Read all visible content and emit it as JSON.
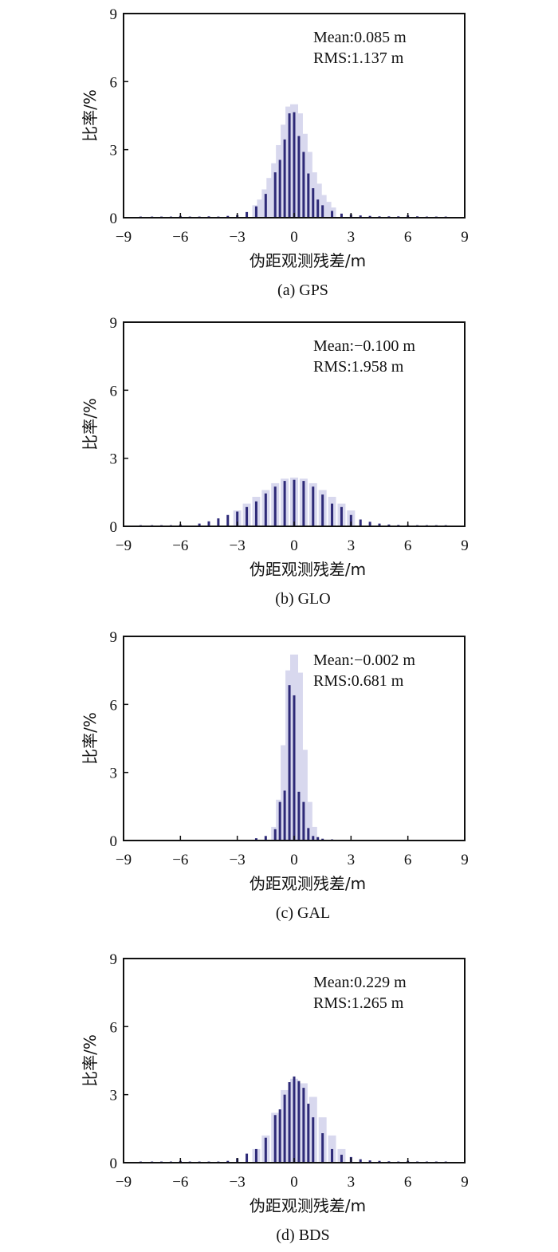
{
  "chart_data": [
    {
      "type": "bar",
      "caption": "(a) GPS",
      "xlabel": "伪距观测残差/m",
      "ylabel": "比率/%",
      "xlim": [
        -9,
        9
      ],
      "ylim": [
        0,
        9
      ],
      "xticks": [
        "−9",
        "−6",
        "−3",
        "0",
        "3",
        "6",
        "9"
      ],
      "yticks": [
        "0",
        "3",
        "6",
        "9"
      ],
      "stats": {
        "mean": "Mean:0.085 m",
        "rms": "RMS:1.137 m"
      },
      "colors": {
        "dark": "#2e2a78",
        "light": "#d8d8ee"
      },
      "series": [
        {
          "name": "dark",
          "x": [
            -8.1,
            -7.5,
            -7.0,
            -6.5,
            -6.0,
            -5.5,
            -5.0,
            -4.5,
            -4.0,
            -3.5,
            -3.0,
            -2.5,
            -2.0,
            -1.5,
            -1.0,
            -0.75,
            -0.5,
            -0.25,
            0.0,
            0.25,
            0.5,
            0.75,
            1.0,
            1.25,
            1.5,
            2.0,
            2.5,
            3.0,
            3.5,
            4.0,
            4.5,
            5.0,
            5.5,
            6.0,
            6.5,
            7.0,
            7.5,
            8.0
          ],
          "values": [
            0.05,
            0.05,
            0.05,
            0.05,
            0.08,
            0.05,
            0.05,
            0.06,
            0.05,
            0.08,
            0.12,
            0.25,
            0.5,
            1.05,
            2.0,
            2.55,
            3.45,
            4.6,
            4.65,
            3.6,
            2.9,
            1.95,
            1.3,
            0.8,
            0.55,
            0.3,
            0.18,
            0.15,
            0.1,
            0.08,
            0.06,
            0.06,
            0.06,
            0.1,
            0.06,
            0.05,
            0.05,
            0.05
          ]
        },
        {
          "name": "light",
          "x": [
            -2.0,
            -1.75,
            -1.5,
            -1.25,
            -1.0,
            -0.75,
            -0.5,
            -0.25,
            0.0,
            0.25,
            0.5,
            0.75,
            1.0,
            1.25,
            1.5,
            1.75,
            2.0
          ],
          "values": [
            0.55,
            0.8,
            1.25,
            1.75,
            2.4,
            3.2,
            4.1,
            4.9,
            5.0,
            4.6,
            3.7,
            2.9,
            2.0,
            1.5,
            1.0,
            0.7,
            0.45
          ]
        }
      ]
    },
    {
      "type": "bar",
      "caption": "(b) GLO",
      "xlabel": "伪距观测残差/m",
      "ylabel": "比率/%",
      "xlim": [
        -9,
        9
      ],
      "ylim": [
        0,
        9
      ],
      "xticks": [
        "−9",
        "−6",
        "−3",
        "0",
        "3",
        "6",
        "9"
      ],
      "yticks": [
        "0",
        "3",
        "6",
        "9"
      ],
      "stats": {
        "mean": "Mean:−0.100 m",
        "rms": "RMS:1.958 m"
      },
      "colors": {
        "dark": "#2e2a78",
        "light": "#d8d8ee"
      },
      "series": [
        {
          "name": "dark",
          "x": [
            -8.1,
            -7.5,
            -7.0,
            -6.5,
            -6.0,
            -5.0,
            -4.5,
            -4.0,
            -3.5,
            -3.0,
            -2.5,
            -2.0,
            -1.5,
            -1.0,
            -0.5,
            0.0,
            0.5,
            1.0,
            1.5,
            2.0,
            2.5,
            3.0,
            3.5,
            4.0,
            4.5,
            5.0,
            5.5,
            6.0,
            6.5,
            7.0,
            7.5,
            8.0
          ],
          "values": [
            0.05,
            0.05,
            0.05,
            0.05,
            0.08,
            0.12,
            0.22,
            0.35,
            0.5,
            0.65,
            0.85,
            1.1,
            1.45,
            1.75,
            2.0,
            2.05,
            2.0,
            1.75,
            1.4,
            1.0,
            0.85,
            0.5,
            0.3,
            0.2,
            0.12,
            0.08,
            0.06,
            0.05,
            0.05,
            0.05,
            0.05,
            0.05
          ]
        },
        {
          "name": "light",
          "x": [
            -3.0,
            -2.5,
            -2.0,
            -1.5,
            -1.0,
            -0.5,
            0.0,
            0.5,
            1.0,
            1.5,
            2.0,
            2.5,
            3.0
          ],
          "values": [
            0.7,
            1.0,
            1.3,
            1.6,
            1.9,
            2.1,
            2.15,
            2.1,
            1.9,
            1.6,
            1.3,
            1.0,
            0.7
          ]
        }
      ]
    },
    {
      "type": "bar",
      "caption": "(c) GAL",
      "xlabel": "伪距观测残差/m",
      "ylabel": "比率/%",
      "xlim": [
        -9,
        9
      ],
      "ylim": [
        0,
        9
      ],
      "xticks": [
        "−9",
        "−6",
        "−3",
        "0",
        "3",
        "6",
        "9"
      ],
      "yticks": [
        "0",
        "3",
        "6",
        "9"
      ],
      "stats": {
        "mean": "Mean:−0.002 m",
        "rms": "RMS:0.681 m"
      },
      "colors": {
        "dark": "#2e2a78",
        "light": "#d8d8ee"
      },
      "series": [
        {
          "name": "dark",
          "x": [
            -2.0,
            -1.5,
            -1.0,
            -0.75,
            -0.5,
            -0.25,
            0.0,
            0.25,
            0.5,
            0.75,
            1.0,
            1.25,
            1.5,
            2.0,
            2.5
          ],
          "values": [
            0.1,
            0.2,
            0.5,
            1.7,
            2.2,
            6.85,
            6.4,
            2.15,
            1.7,
            0.55,
            0.2,
            0.15,
            0.08,
            0.05,
            0.03
          ]
        },
        {
          "name": "light",
          "x": [
            -1.0,
            -0.75,
            -0.5,
            -0.25,
            0.0,
            0.25,
            0.5,
            0.75,
            1.0
          ],
          "values": [
            0.6,
            1.8,
            4.2,
            7.5,
            8.2,
            7.4,
            4.0,
            1.7,
            0.6
          ]
        }
      ]
    },
    {
      "type": "bar",
      "caption": "(d) BDS",
      "xlabel": "伪距观测残差/m",
      "ylabel": "比率/%",
      "xlim": [
        -9,
        9
      ],
      "ylim": [
        0,
        9
      ],
      "xticks": [
        "−9",
        "−6",
        "−3",
        "0",
        "3",
        "6",
        "9"
      ],
      "yticks": [
        "0",
        "3",
        "6",
        "9"
      ],
      "stats": {
        "mean": "Mean:0.229 m",
        "rms": "RMS:1.265 m"
      },
      "colors": {
        "dark": "#2e2a78",
        "light": "#d8d8ee"
      },
      "series": [
        {
          "name": "dark",
          "x": [
            -8.1,
            -7.5,
            -7.0,
            -6.5,
            -6.0,
            -5.5,
            -5.0,
            -4.5,
            -4.0,
            -3.5,
            -3.0,
            -2.5,
            -2.0,
            -1.5,
            -1.0,
            -0.75,
            -0.5,
            -0.25,
            0.0,
            0.25,
            0.5,
            0.75,
            1.0,
            1.5,
            2.0,
            2.5,
            3.0,
            3.5,
            4.0,
            4.5,
            5.0,
            5.5,
            6.0,
            6.5,
            7.0,
            7.5,
            8.0
          ],
          "values": [
            0.05,
            0.05,
            0.05,
            0.05,
            0.08,
            0.05,
            0.05,
            0.05,
            0.05,
            0.08,
            0.2,
            0.4,
            0.6,
            1.1,
            2.1,
            2.35,
            3.0,
            3.55,
            3.8,
            3.6,
            3.3,
            2.6,
            2.0,
            1.3,
            0.6,
            0.35,
            0.25,
            0.15,
            0.1,
            0.08,
            0.06,
            0.05,
            0.08,
            0.05,
            0.05,
            0.05,
            0.05
          ]
        },
        {
          "name": "light",
          "x": [
            -2.0,
            -1.5,
            -1.0,
            -0.5,
            0.0,
            0.5,
            1.0,
            1.5,
            2.0,
            2.5
          ],
          "values": [
            0.6,
            1.2,
            2.2,
            3.2,
            3.7,
            3.5,
            2.9,
            2.0,
            1.2,
            0.6
          ]
        }
      ]
    }
  ]
}
